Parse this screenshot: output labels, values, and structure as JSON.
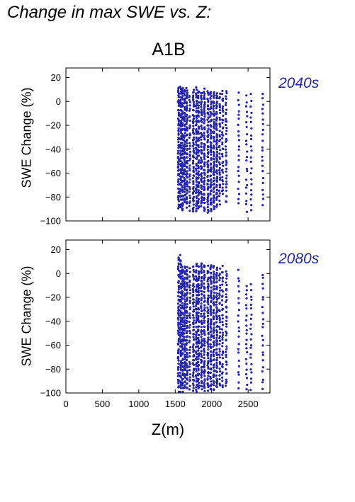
{
  "header": {
    "title": "Change in max SWE vs. Z:",
    "scenario": "A1B"
  },
  "chart_data": [
    {
      "type": "scatter",
      "period_label": "2040s",
      "ylabel": "SWE Change (%)",
      "xlim": [
        0,
        2800
      ],
      "ylim": [
        -100,
        28
      ],
      "yticks": [
        20,
        0,
        -20,
        -40,
        -60,
        -80,
        -100
      ],
      "marker_color": "#2323b0",
      "elevation_columns": [
        {
          "x": 1545,
          "ymin": -90,
          "ymax": 12,
          "density": "high"
        },
        {
          "x": 1575,
          "ymin": -88,
          "ymax": 12,
          "density": "high"
        },
        {
          "x": 1600,
          "ymin": -92,
          "ymax": 11,
          "density": "high"
        },
        {
          "x": 1630,
          "ymin": -85,
          "ymax": 10,
          "density": "high"
        },
        {
          "x": 1660,
          "ymin": -88,
          "ymax": 10,
          "density": "high"
        },
        {
          "x": 1700,
          "ymin": -90,
          "ymax": 6,
          "density": "medium"
        },
        {
          "x": 1750,
          "ymin": -92,
          "ymax": 9,
          "density": "high"
        },
        {
          "x": 1790,
          "ymin": -93,
          "ymax": 11,
          "density": "high"
        },
        {
          "x": 1820,
          "ymin": -90,
          "ymax": 9,
          "density": "high"
        },
        {
          "x": 1860,
          "ymin": -88,
          "ymax": 8,
          "density": "high"
        },
        {
          "x": 1900,
          "ymin": -92,
          "ymax": 10,
          "density": "high"
        },
        {
          "x": 1950,
          "ymin": -93,
          "ymax": 9,
          "density": "high"
        },
        {
          "x": 1990,
          "ymin": -92,
          "ymax": 9,
          "density": "high"
        },
        {
          "x": 2030,
          "ymin": -90,
          "ymax": 8,
          "density": "high"
        },
        {
          "x": 2070,
          "ymin": -88,
          "ymax": 7,
          "density": "high"
        },
        {
          "x": 2110,
          "ymin": -85,
          "ymax": 6,
          "density": "medium"
        },
        {
          "x": 2150,
          "ymin": -78,
          "ymax": 8,
          "density": "medium"
        },
        {
          "x": 2200,
          "ymin": -85,
          "ymax": 8,
          "density": "medium"
        },
        {
          "x": 2370,
          "ymin": -85,
          "ymax": 6,
          "density": "low"
        },
        {
          "x": 2480,
          "ymin": -92,
          "ymax": 5,
          "density": "low"
        },
        {
          "x": 2540,
          "ymin": -92,
          "ymax": 5,
          "density": "low"
        },
        {
          "x": 2700,
          "ymin": -86,
          "ymax": 6,
          "density": "low"
        }
      ]
    },
    {
      "type": "scatter",
      "period_label": "2080s",
      "ylabel": "SWE Change (%)",
      "xlabel": "Z(m)",
      "xlim": [
        0,
        2800
      ],
      "ylim": [
        -100,
        28
      ],
      "xticks": [
        0,
        500,
        1000,
        1500,
        2000,
        2500
      ],
      "yticks": [
        20,
        0,
        -20,
        -40,
        -60,
        -80,
        -100
      ],
      "marker_color": "#2323b0",
      "elevation_columns": [
        {
          "x": 1545,
          "ymin": -98,
          "ymax": 14,
          "density": "high"
        },
        {
          "x": 1575,
          "ymin": -98,
          "ymax": 14,
          "density": "high"
        },
        {
          "x": 1600,
          "ymin": -98,
          "ymax": 6,
          "density": "high"
        },
        {
          "x": 1630,
          "ymin": -97,
          "ymax": 6,
          "density": "high"
        },
        {
          "x": 1660,
          "ymin": -96,
          "ymax": 5,
          "density": "high"
        },
        {
          "x": 1700,
          "ymin": -96,
          "ymax": 3,
          "density": "medium"
        },
        {
          "x": 1750,
          "ymin": -97,
          "ymax": 6,
          "density": "high"
        },
        {
          "x": 1790,
          "ymin": -98,
          "ymax": 8,
          "density": "high"
        },
        {
          "x": 1820,
          "ymin": -97,
          "ymax": 6,
          "density": "high"
        },
        {
          "x": 1860,
          "ymin": -97,
          "ymax": 9,
          "density": "high"
        },
        {
          "x": 1900,
          "ymin": -98,
          "ymax": 7,
          "density": "high"
        },
        {
          "x": 1950,
          "ymin": -98,
          "ymax": 5,
          "density": "high"
        },
        {
          "x": 1990,
          "ymin": -98,
          "ymax": 7,
          "density": "high"
        },
        {
          "x": 2030,
          "ymin": -97,
          "ymax": 5,
          "density": "high"
        },
        {
          "x": 2070,
          "ymin": -96,
          "ymax": 5,
          "density": "high"
        },
        {
          "x": 2110,
          "ymin": -94,
          "ymax": 3,
          "density": "medium"
        },
        {
          "x": 2150,
          "ymin": -95,
          "ymax": 5,
          "density": "medium"
        },
        {
          "x": 2200,
          "ymin": -95,
          "ymax": 3,
          "density": "medium"
        },
        {
          "x": 2370,
          "ymin": -95,
          "ymax": 2,
          "density": "low"
        },
        {
          "x": 2480,
          "ymin": -96,
          "ymax": -10,
          "density": "low"
        },
        {
          "x": 2540,
          "ymin": -96,
          "ymax": -10,
          "density": "low"
        },
        {
          "x": 2700,
          "ymin": -97,
          "ymax": 0,
          "density": "low"
        }
      ]
    }
  ]
}
